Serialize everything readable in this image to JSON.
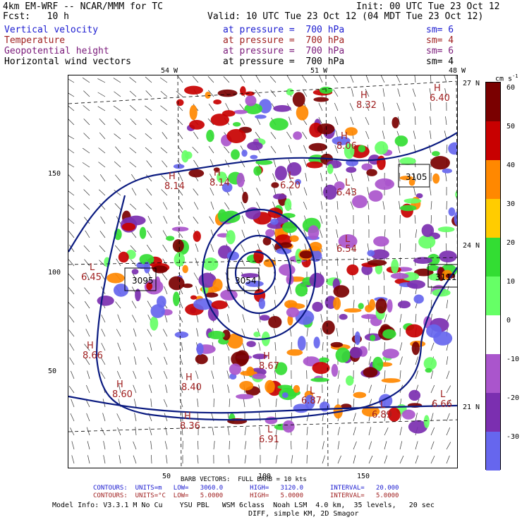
{
  "header": {
    "model": "4km EM-WRF -- NCAR/MMM for TC",
    "init": "Init: 00 UTC Tue 23 Oct 12",
    "fcst": "Fcst:   10 h",
    "valid": "Valid: 10 UTC Tue 23 Oct 12 (04 MDT Tue 23 Oct 12)"
  },
  "fields": [
    {
      "name": "Vertical velocity",
      "level": "at pressure =  700 hPa",
      "sm": "sm= 6",
      "color": "#1b1bd0"
    },
    {
      "name": "Temperature",
      "level": "at pressure =  700 hPa",
      "sm": "sm= 4",
      "color": "#a02020"
    },
    {
      "name": "Geopotential height",
      "level": "at pressure =  700 hPa",
      "sm": "sm= 6",
      "color": "#7a1a7a"
    },
    {
      "name": "Horizontal wind vectors",
      "level": "at pressure =  700 hPa",
      "sm": "sm= 4",
      "color": "#000000"
    }
  ],
  "axes": {
    "lon_labels": [
      "54 W",
      "51 W",
      "48 W"
    ],
    "lat_labels": [
      "27 N",
      "24 N",
      "21 N"
    ],
    "y_ticks": [
      "150",
      "100",
      "50"
    ],
    "x_ticks": [
      "50",
      "100",
      "150"
    ]
  },
  "colorbar": {
    "unit": "cm s",
    "unit_exp": "-1",
    "levels": [
      "60",
      "50",
      "40",
      "30",
      "20",
      "10",
      "0",
      "-10",
      "-20",
      "-30"
    ],
    "colors": [
      "#7a0000",
      "#c80000",
      "#ff8800",
      "#ffcc00",
      "#33dd33",
      "#66ff66",
      "#ffffff",
      "#aa55cc",
      "#7b2fb0",
      "#6666ee"
    ]
  },
  "map_labels": {
    "highs": [
      {
        "letter": "H",
        "value": "8.14"
      },
      {
        "letter": "H",
        "value": "8.14"
      },
      {
        "letter": "H",
        "value": "8.06"
      },
      {
        "letter": "H",
        "value": "8.32"
      },
      {
        "letter": "H",
        "value": "8.66"
      },
      {
        "letter": "H",
        "value": "8.60"
      },
      {
        "letter": "H",
        "value": "8.40"
      },
      {
        "letter": "H",
        "value": "8.36"
      },
      {
        "letter": "H",
        "value": "8.67"
      },
      {
        "letter": "H",
        "value": "6.40"
      }
    ],
    "lows": [
      {
        "letter": "L",
        "value": "6.45"
      },
      {
        "letter": "L",
        "value": "6.43"
      },
      {
        "letter": "L",
        "value": "6.91"
      },
      {
        "letter": "L",
        "value": "6.89"
      },
      {
        "letter": "L",
        "value": "6.87"
      },
      {
        "letter": "L",
        "value": "6.66"
      },
      {
        "letter": "L",
        "value": "6.20"
      },
      {
        "letter": "L",
        "value": "6.54"
      }
    ],
    "heights": [
      "3095",
      "3054",
      "3105",
      "3111"
    ]
  },
  "footer": {
    "barb": "BARB VECTORS:  FULL BARB = 10 kts",
    "contours1": "CONTOURS:  UNITS=m   LOW=   3060.0       HIGH=   3120.0       INTERVAL=   20.000",
    "contours2": "CONTOURS:  UNITS=°C  LOW=   5.0000       HIGH=   5.0000       INTERVAL=   5.0000",
    "model_info": "Model Info: V3.3.1 M No Cu    YSU PBL   WSM 6class  Noah LSM  4.0 km,  35 levels,   20 sec",
    "diff": "DIFF, simple KM, 2D Smagor"
  }
}
